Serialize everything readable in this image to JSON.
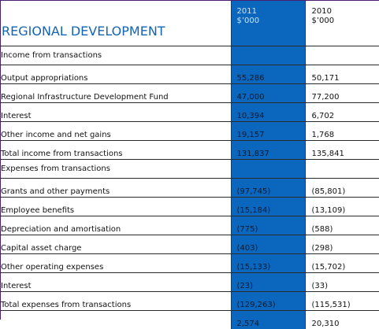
{
  "title": "REGIONAL DEVELOPMENT",
  "columns": [
    {
      "year": "2011",
      "unit": "$’000"
    },
    {
      "year": "2010",
      "unit": "$’000"
    }
  ],
  "rows": [
    {
      "label": "Income from transactions",
      "v2011": "",
      "v2010": ""
    },
    {
      "label": "Output appropriations",
      "v2011": "55,286",
      "v2010": "50,171"
    },
    {
      "label": "Regional Infrastructure Development Fund",
      "v2011": "47,000",
      "v2010": "77,200"
    },
    {
      "label": "Interest",
      "v2011": "10,394",
      "v2010": "6,702"
    },
    {
      "label": "Other income and net gains",
      "v2011": "19,157",
      "v2010": "1,768"
    },
    {
      "label": "Total income from transactions",
      "v2011": "131,837",
      "v2010": "135,841"
    },
    {
      "label": "Expenses from transactions",
      "v2011": "",
      "v2010": ""
    },
    {
      "label": "Grants and other payments",
      "v2011": "(97,745)",
      "v2010": "(85,801)"
    },
    {
      "label": "Employee benefits",
      "v2011": "(15,184)",
      "v2010": "(13,109)"
    },
    {
      "label": "Depreciation and amortisation",
      "v2011": "(775)",
      "v2010": "(588)"
    },
    {
      "label": "Capital asset charge",
      "v2011": "(403)",
      "v2010": "(298)"
    },
    {
      "label": "Other operating expenses",
      "v2011": "(15,133)",
      "v2010": "(15,702)"
    },
    {
      "label": "Interest",
      "v2011": "(23)",
      "v2010": "(33)"
    },
    {
      "label": "Total expenses from transactions",
      "v2011": "(129,263)",
      "v2010": "(115,531)"
    },
    {
      "label": "",
      "v2011": "2,574",
      "v2010": "20,310"
    }
  ]
}
